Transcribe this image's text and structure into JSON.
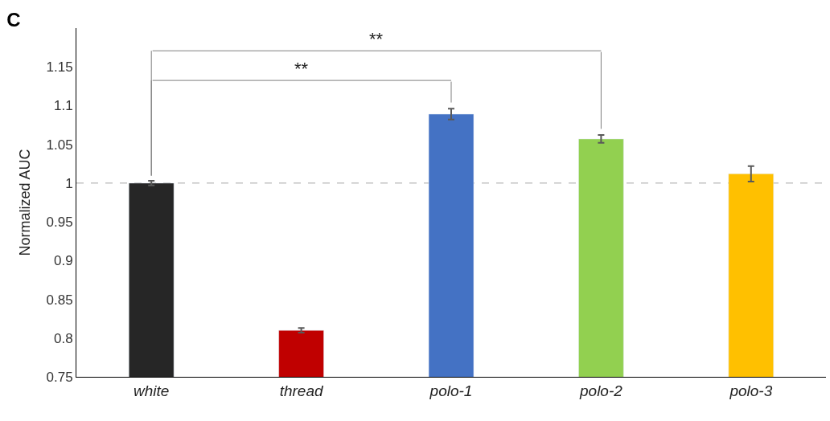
{
  "chart_data": {
    "type": "bar",
    "title": "C",
    "ylabel": "Normalized AUC",
    "categories": [
      "white",
      "thread",
      "polo-1",
      "polo-2",
      "polo-3"
    ],
    "values": [
      1.0,
      0.81,
      1.089,
      1.057,
      1.012
    ],
    "errors": [
      0.003,
      0.003,
      0.007,
      0.005,
      0.01
    ],
    "colors": [
      "#262626",
      "#c00000",
      "#4472c4",
      "#92d050",
      "#ffc000"
    ],
    "ylim": [
      0.75,
      1.2
    ],
    "yticks": [
      0.75,
      0.8,
      0.85,
      0.9,
      0.95,
      1,
      1.05,
      1.1,
      1.15
    ],
    "ref_lines": [
      {
        "axis": "y",
        "value": 1,
        "color": "#a6a6a6",
        "line_style": "dashed"
      }
    ],
    "annotations": [
      "**",
      "**"
    ],
    "grid": false,
    "legend": false
  }
}
